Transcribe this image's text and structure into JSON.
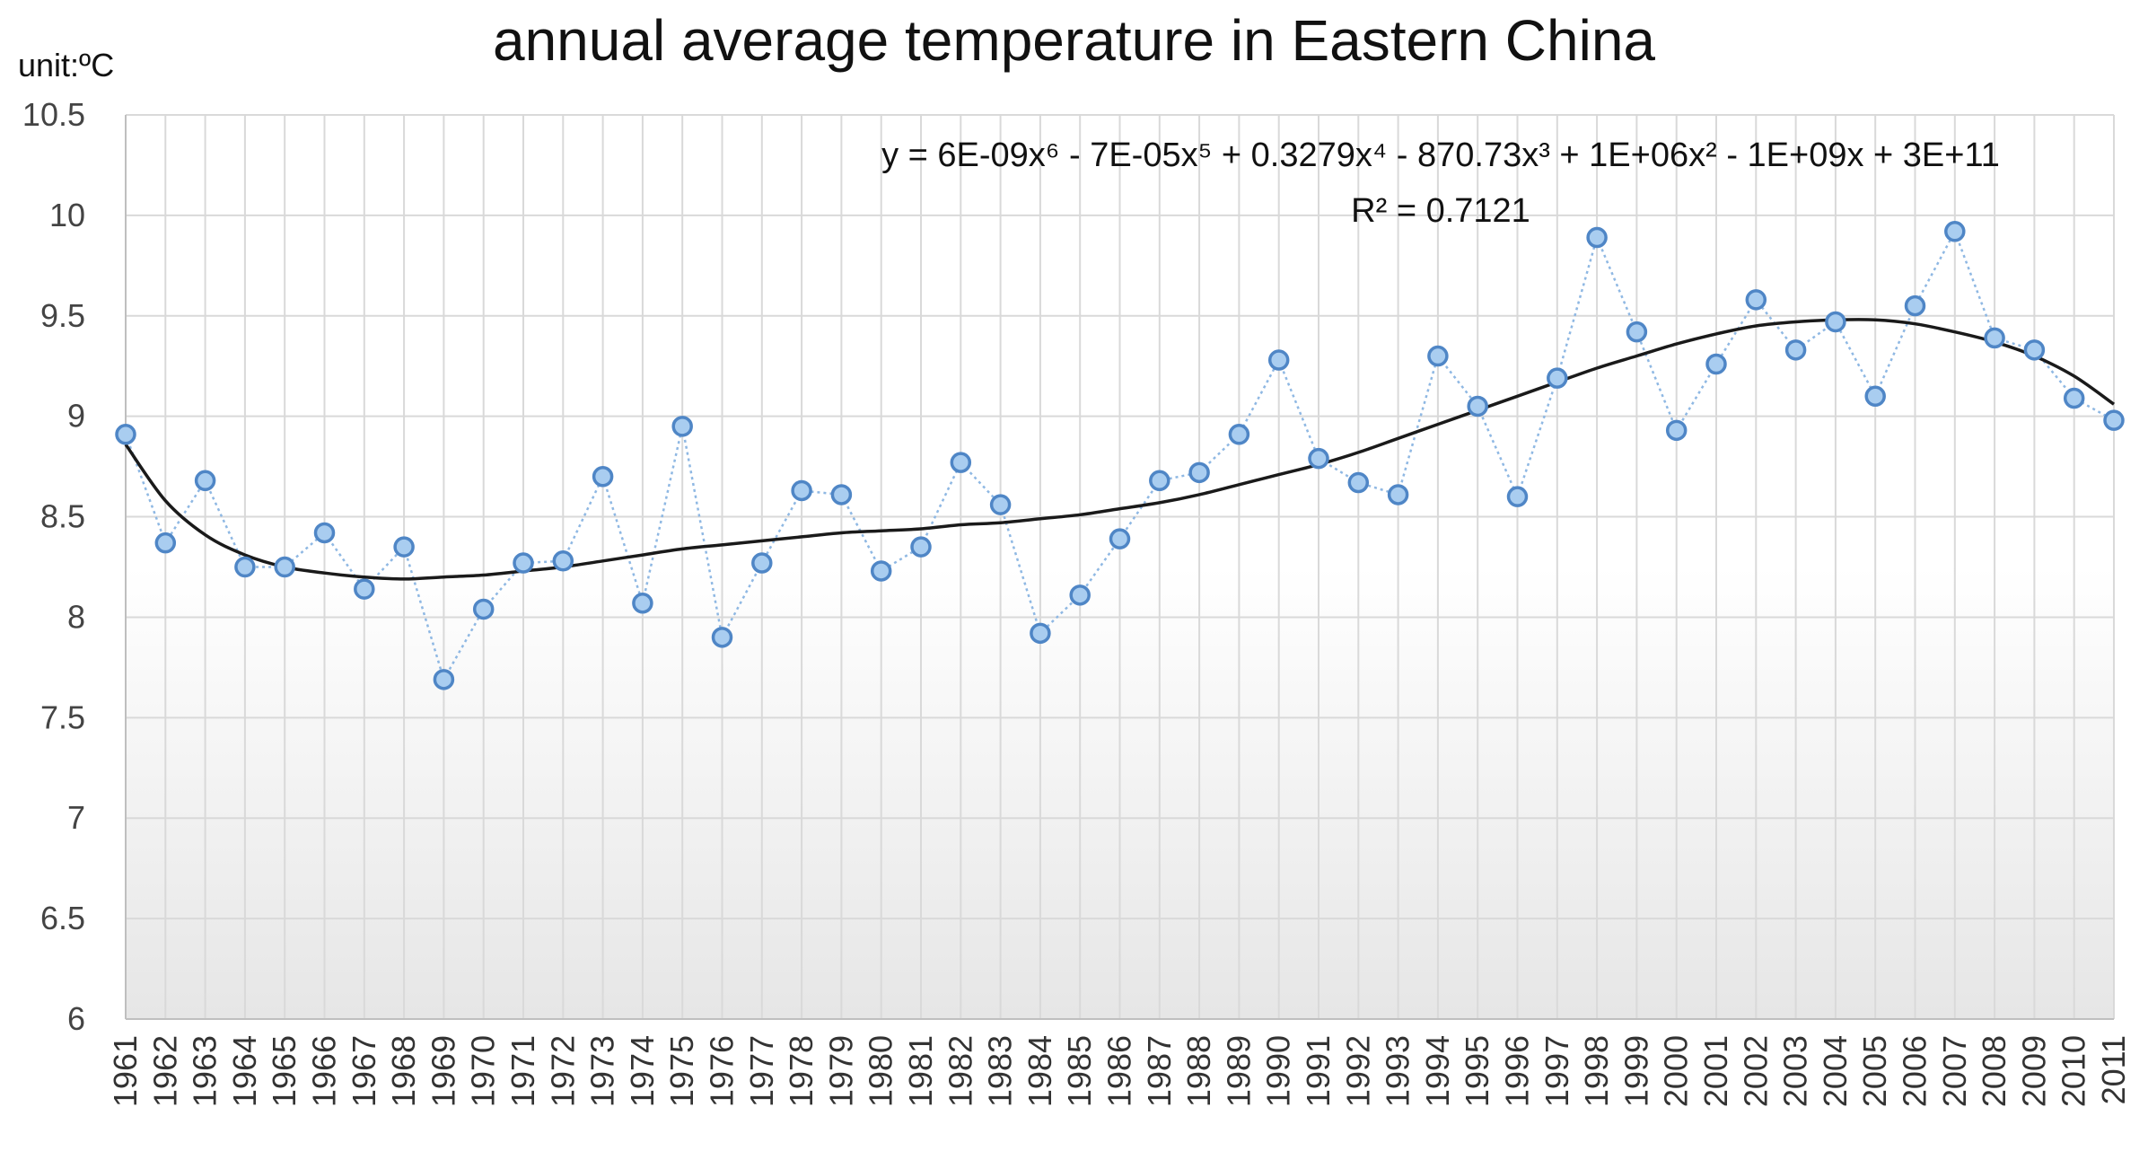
{
  "chart_data": {
    "type": "line",
    "title": "annual average temperature in Eastern China",
    "unit_label": "unit:ºC",
    "xlabel": "",
    "ylabel": "",
    "ylim": [
      6,
      10.5
    ],
    "ytick_step": 0.5,
    "ytick_labels": [
      "6",
      "6.5",
      "7",
      "7.5",
      "8",
      "8.5",
      "9",
      "9.5",
      "10",
      "10.5"
    ],
    "grid": true,
    "categories": [
      "1961",
      "1962",
      "1963",
      "1964",
      "1965",
      "1966",
      "1967",
      "1968",
      "1969",
      "1970",
      "1971",
      "1972",
      "1973",
      "1974",
      "1975",
      "1976",
      "1977",
      "1978",
      "1979",
      "1980",
      "1981",
      "1982",
      "1983",
      "1984",
      "1985",
      "1986",
      "1987",
      "1988",
      "1989",
      "1990",
      "1991",
      "1992",
      "1993",
      "1994",
      "1995",
      "1996",
      "1997",
      "1998",
      "1999",
      "2000",
      "2001",
      "2002",
      "2003",
      "2004",
      "2005",
      "2006",
      "2007",
      "2008",
      "2009",
      "2010",
      "2011"
    ],
    "series": [
      {
        "name": "annual average temperature",
        "style": "dotted-line-with-markers",
        "values": [
          8.91,
          8.37,
          8.68,
          8.25,
          8.25,
          8.42,
          8.14,
          8.35,
          7.69,
          8.04,
          8.27,
          8.28,
          8.7,
          8.07,
          8.95,
          7.9,
          8.27,
          8.63,
          8.61,
          8.23,
          8.35,
          8.77,
          8.56,
          7.92,
          8.11,
          8.39,
          8.68,
          8.72,
          8.91,
          9.28,
          8.79,
          8.67,
          8.61,
          9.3,
          9.05,
          8.6,
          9.19,
          9.89,
          9.42,
          8.93,
          9.26,
          9.58,
          9.33,
          9.47,
          9.1,
          9.55,
          9.92,
          9.39,
          9.33,
          9.09,
          8.98
        ]
      },
      {
        "name": "poly6 trendline",
        "style": "solid-line",
        "values": [
          8.86,
          8.58,
          8.41,
          8.31,
          8.25,
          8.22,
          8.2,
          8.19,
          8.2,
          8.21,
          8.23,
          8.25,
          8.28,
          8.31,
          8.34,
          8.36,
          8.38,
          8.4,
          8.42,
          8.43,
          8.44,
          8.46,
          8.47,
          8.49,
          8.51,
          8.54,
          8.57,
          8.61,
          8.66,
          8.71,
          8.76,
          8.82,
          8.89,
          8.96,
          9.03,
          9.1,
          9.17,
          9.24,
          9.3,
          9.36,
          9.41,
          9.45,
          9.47,
          9.48,
          9.48,
          9.46,
          9.42,
          9.37,
          9.3,
          9.2,
          9.06
        ]
      }
    ],
    "annotation": {
      "equation": "y = 6E-09x⁶ - 7E-05x⁵ + 0.3279x⁴ - 870.73x³ + 1E+06x² - 1E+09x + 3E+11",
      "r_squared": "R² = 0.7121"
    },
    "colors": {
      "marker_fill": "#a9cdf0",
      "marker_stroke": "#4f86c6",
      "data_line": "#8fb8e3",
      "trend_line": "#1a1a1a",
      "grid": "#d9d9d9",
      "axis": "#bfbfbf",
      "plot_bg_top": "#ffffff",
      "plot_bg_bottom": "#e6e6e6"
    }
  }
}
